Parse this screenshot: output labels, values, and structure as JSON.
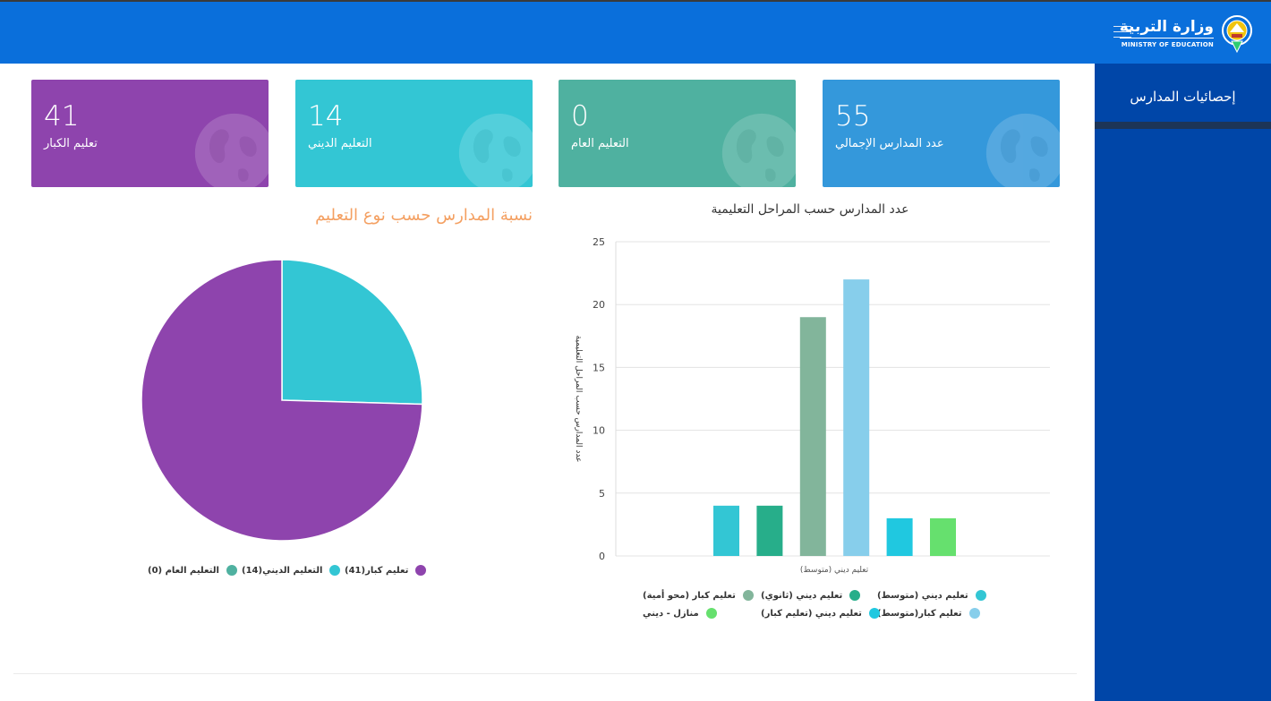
{
  "header": {
    "brand_ar": "وزارة التربية",
    "brand_en": "MINISTRY OF EDUCATION",
    "menu_icon": "hamburger-icon",
    "logo_icon": "ministry-emblem-icon"
  },
  "sidebar": {
    "items": [
      {
        "label": "إحصائيات المدارس"
      }
    ]
  },
  "cards": [
    {
      "value": "41",
      "label": "تعليم الكبار",
      "color": "#8e44ad",
      "icon": "globe-icon"
    },
    {
      "value": "14",
      "label": "التعليم الديني",
      "color": "#33c6d4",
      "icon": "globe-icon"
    },
    {
      "value": "0",
      "label": "التعليم العام",
      "color": "#4fb1a0",
      "icon": "globe-icon"
    },
    {
      "value": "55",
      "label": "عدد المدارس الإجمالي",
      "color": "#3498db",
      "icon": "globe-icon"
    }
  ],
  "chart_data": [
    {
      "type": "pie",
      "title": "نسبة المدارس حسب نوع التعليم",
      "slices": [
        {
          "label": "تعليم كبار(41)",
          "value": 41,
          "color": "#8e44ad"
        },
        {
          "label": "التعليم الديني(14)",
          "value": 14,
          "color": "#33c6d4"
        },
        {
          "label": "التعليم العام (0)",
          "value": 0,
          "color": "#4fb1a0"
        }
      ]
    },
    {
      "type": "bar",
      "title": "عدد المدارس حسب المراحل التعليمية",
      "ylabel": "عدد المدارس حسب المراحل التعليمية",
      "xlabel": "تعليم ديني (متوسط)",
      "ylim": [
        0,
        25
      ],
      "yticks": [
        0,
        5,
        10,
        15,
        20,
        25
      ],
      "grid": true,
      "series": [
        {
          "name": "تعليم ديني (متوسط)",
          "value": 4,
          "color": "#33c6d4"
        },
        {
          "name": "تعليم ديني (ثانوي)",
          "value": 4,
          "color": "#27ae8a"
        },
        {
          "name": "تعليم كبار (محو أمية)",
          "value": 19,
          "color": "#82b59b"
        },
        {
          "name": "تعليم كبار(متوسط)",
          "value": 22,
          "color": "#87ceeb"
        },
        {
          "name": "تعليم ديني (تعليم كبار)",
          "value": 3,
          "color": "#20c8e0"
        },
        {
          "name": "منازل - ديني",
          "value": 3,
          "color": "#66e06e"
        }
      ]
    }
  ]
}
